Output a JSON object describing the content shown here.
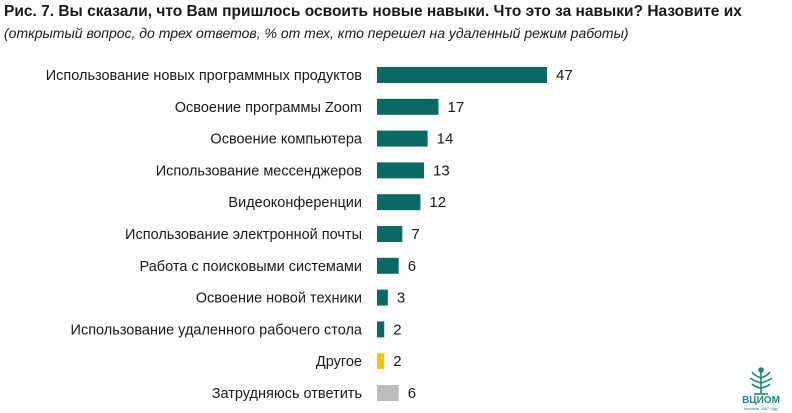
{
  "header": {
    "title": "Рис. 7. Вы сказали, что Вам пришлось освоить новые навыки. Что это за навыки? Назовите их",
    "subtitle": "(открытый вопрос, до трех ответов, % от тех, кто перешел на удаленный режим работы)"
  },
  "logo": {
    "name": "ВЦИОМ",
    "tagline": "основан 1987 году"
  },
  "colors": {
    "main": "#0b6b64",
    "other": "#f5c211",
    "hard": "#bdbdbd",
    "text": "#1a1a1a"
  },
  "chart_data": {
    "type": "bar",
    "orientation": "horizontal",
    "categories": [
      "Использование новых программных продуктов",
      "Освоение программы Zoom",
      "Освоение компьютера",
      "Использование мессенджеров",
      "Видеоконференции",
      "Использование электронной почты",
      "Работа с поисковыми системами",
      "Освоение новой техники",
      "Использование удаленного рабочего стола",
      "Другое",
      "Затрудняюсь ответить"
    ],
    "values": [
      47,
      17,
      14,
      13,
      12,
      7,
      6,
      3,
      2,
      2,
      6
    ],
    "bar_colors": [
      "main",
      "main",
      "main",
      "main",
      "main",
      "main",
      "main",
      "main",
      "main",
      "other",
      "hard"
    ],
    "xlim": [
      0,
      47
    ],
    "grid": false,
    "data_labels": true
  }
}
